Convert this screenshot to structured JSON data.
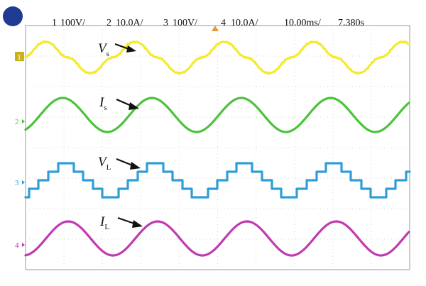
{
  "header": {
    "ch1": {
      "num": "1",
      "scale": "100V/",
      "color": "#f5ea2c"
    },
    "ch2": {
      "num": "2",
      "scale": "10.0A/",
      "color": "#4cc23c"
    },
    "ch3": {
      "num": "3",
      "scale": "100V/",
      "color": "#2f9ed8"
    },
    "ch4": {
      "num": "4",
      "scale": "10.0A/",
      "color": "#c03bb0"
    },
    "timebase": "10.00ms/",
    "position": "7.380s",
    "indicator_color": "#1f3a93"
  },
  "chart_data": {
    "type": "line",
    "grid": true,
    "xlabel": "",
    "ylabel": "",
    "time_per_div_ms": 10,
    "series": [
      {
        "channel": "1",
        "label": "V",
        "subscript": "s",
        "color": "#f5ea2c",
        "shape": "quasi-sine (distorted)",
        "cycles_shown": 4.3,
        "scale": "100V/"
      },
      {
        "channel": "2",
        "label": "I",
        "subscript": "s",
        "color": "#4cc23c",
        "shape": "sine",
        "cycles_shown": 4.3,
        "scale": "10.0A/"
      },
      {
        "channel": "3",
        "label": "V",
        "subscript": "L",
        "color": "#2f9ed8",
        "shape": "multilevel staircase",
        "cycles_shown": 4.3,
        "scale": "100V/"
      },
      {
        "channel": "4",
        "label": "I",
        "subscript": "L",
        "color": "#c03bb0",
        "shape": "sine",
        "cycles_shown": 4.3,
        "scale": "10.0A/"
      }
    ]
  }
}
